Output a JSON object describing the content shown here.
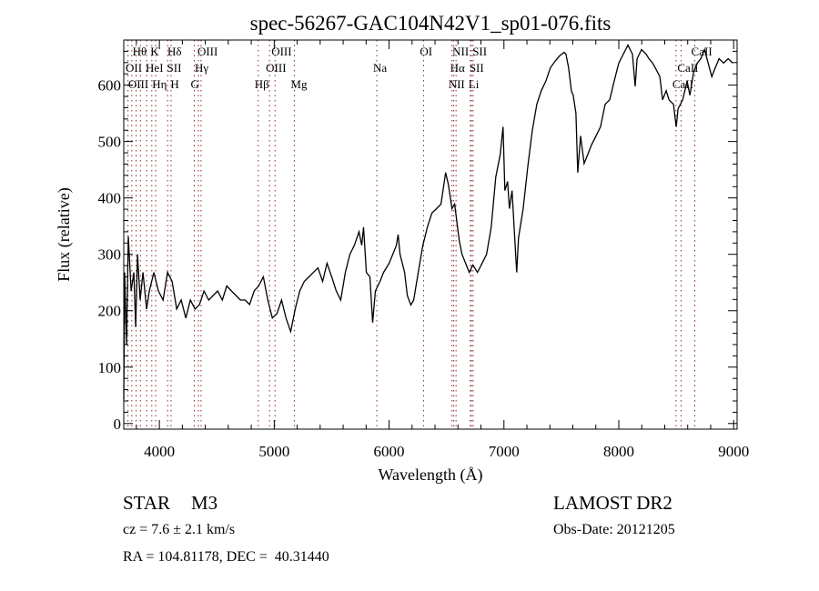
{
  "chart_data": {
    "type": "line",
    "title": "spec-56267-GAC104N42V1_sp01-076.fits",
    "xlabel": "Wavelength (Å)",
    "ylabel": "Flux (relative)",
    "xlim": [
      3690,
      9030
    ],
    "ylim": [
      -10,
      680
    ],
    "xticks": [
      4000,
      5000,
      6000,
      7000,
      8000,
      9000
    ],
    "xtick_labels": [
      "4000",
      "5000",
      "6000",
      "7000",
      "8000",
      "9000"
    ],
    "yticks": [
      0,
      100,
      200,
      300,
      400,
      500,
      600
    ],
    "ytick_labels": [
      "0",
      "100",
      "200",
      "300",
      "400",
      "500",
      "600"
    ],
    "grid": false,
    "series": [
      {
        "name": "spectrum",
        "color": "#000000",
        "x": [
          3690,
          3698,
          3714,
          3730,
          3754,
          3778,
          3794,
          3810,
          3833,
          3857,
          3889,
          3913,
          3952,
          3992,
          4032,
          4071,
          4111,
          4151,
          4190,
          4230,
          4270,
          4310,
          4349,
          4389,
          4429,
          4468,
          4508,
          4548,
          4587,
          4627,
          4667,
          4706,
          4746,
          4786,
          4825,
          4865,
          4905,
          4944,
          4984,
          5024,
          5064,
          5103,
          5143,
          5183,
          5222,
          5262,
          5302,
          5341,
          5381,
          5421,
          5460,
          5500,
          5540,
          5579,
          5619,
          5659,
          5698,
          5738,
          5762,
          5778,
          5802,
          5833,
          5857,
          5881,
          5921,
          5952,
          6000,
          6032,
          6064,
          6079,
          6095,
          6135,
          6159,
          6190,
          6214,
          6254,
          6294,
          6333,
          6373,
          6413,
          6452,
          6492,
          6516,
          6548,
          6571,
          6611,
          6635,
          6667,
          6698,
          6730,
          6770,
          6810,
          6849,
          6889,
          6929,
          6968,
          6992,
          7008,
          7032,
          7048,
          7071,
          7095,
          7111,
          7127,
          7167,
          7206,
          7246,
          7286,
          7325,
          7365,
          7405,
          7444,
          7484,
          7524,
          7540,
          7563,
          7587,
          7603,
          7627,
          7643,
          7667,
          7698,
          7730,
          7762,
          7802,
          7841,
          7881,
          7921,
          7960,
          8000,
          8040,
          8079,
          8119,
          8143,
          8159,
          8198,
          8238,
          8262,
          8294,
          8317,
          8357,
          8381,
          8413,
          8437,
          8476,
          8500,
          8516,
          8556,
          8595,
          8619,
          8651,
          8683,
          8714,
          8746,
          8778,
          8810,
          8841,
          8873,
          8913,
          8952,
          8992
        ],
        "y": [
          42,
          268,
          139,
          332,
          235,
          268,
          171,
          300,
          219,
          268,
          203,
          235,
          268,
          235,
          219,
          268,
          252,
          203,
          219,
          187,
          219,
          203,
          211,
          235,
          219,
          227,
          235,
          219,
          244,
          235,
          227,
          219,
          219,
          211,
          235,
          244,
          260,
          219,
          187,
          195,
          219,
          187,
          163,
          203,
          235,
          252,
          260,
          268,
          276,
          252,
          284,
          260,
          235,
          219,
          268,
          300,
          316,
          340,
          316,
          348,
          268,
          260,
          179,
          235,
          252,
          268,
          284,
          300,
          316,
          335,
          300,
          268,
          227,
          210,
          219,
          268,
          316,
          348,
          373,
          381,
          389,
          445,
          424,
          381,
          389,
          324,
          300,
          284,
          268,
          281,
          268,
          284,
          300,
          348,
          437,
          477,
          526,
          413,
          429,
          381,
          413,
          324,
          268,
          329,
          381,
          453,
          518,
          566,
          590,
          607,
          631,
          642,
          652,
          658,
          655,
          631,
          590,
          582,
          550,
          445,
          510,
          461,
          477,
          494,
          510,
          526,
          566,
          574,
          607,
          639,
          655,
          671,
          655,
          598,
          647,
          663,
          655,
          647,
          639,
          631,
          615,
          574,
          590,
          574,
          566,
          526,
          558,
          574,
          607,
          582,
          623,
          639,
          647,
          663,
          639,
          615,
          631,
          647,
          639,
          647,
          639
        ]
      }
    ],
    "line_markers": {
      "color": "#8b2a2a",
      "rows": [
        [
          {
            "label": "Hθ",
            "x": 3798
          },
          {
            "label": "K",
            "x": 3934
          },
          {
            "label": "Hδ",
            "x": 4102
          },
          {
            "label": "OIII",
            "x": 4363
          },
          {
            "label": "OIII",
            "x": 5007
          },
          {
            "label": "OI",
            "x": 6300
          },
          {
            "label": "NII",
            "x": 6583
          },
          {
            "label": "SII",
            "x": 6716
          },
          {
            "label": "CaII",
            "x": 8662
          }
        ],
        [
          {
            "label": "OII",
            "x": 3727
          },
          {
            "label": "HeI",
            "x": 3889
          },
          {
            "label": "SII",
            "x": 4072
          },
          {
            "label": "Hγ",
            "x": 4340
          },
          {
            "label": "OIII",
            "x": 4959
          },
          {
            "label": "Na",
            "x": 5893
          },
          {
            "label": "Hα",
            "x": 6563
          },
          {
            "label": "SII",
            "x": 6731
          },
          {
            "label": "CaII",
            "x": 8542
          }
        ],
        [
          {
            "label": "OIII",
            "x": 3760
          },
          {
            "label": "Hη",
            "x": 3835
          },
          {
            "label": "H",
            "x": 3968
          },
          {
            "label": "G",
            "x": 4304
          },
          {
            "label": "Hβ",
            "x": 4861
          },
          {
            "label": "Mg",
            "x": 5175
          },
          {
            "label": "NII",
            "x": 6548
          },
          {
            "label": "Li",
            "x": 6708
          },
          {
            "label": "CaII",
            "x": 8498
          }
        ]
      ]
    }
  },
  "info": {
    "object_class": "STAR",
    "subclass": "M3",
    "survey": "LAMOST DR2",
    "cz": "cz = 7.6 ± 2.1 km/s",
    "obs_date": "Obs-Date: 20121205",
    "coords": "RA = 104.81178, DEC =  40.31440"
  }
}
